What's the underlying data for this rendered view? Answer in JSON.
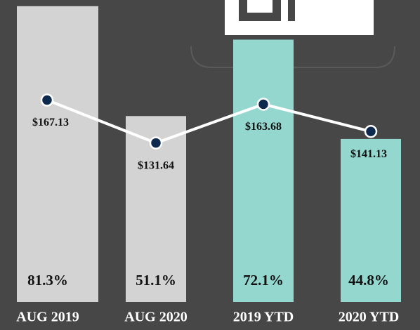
{
  "chart_data": {
    "type": "bar",
    "categories": [
      "AUG 2019",
      "AUG 2020",
      "2019 YTD",
      "2020 YTD"
    ],
    "ylim": [
      0,
      83
    ],
    "y2lim": [
      0,
      250
    ],
    "series": [
      {
        "type": "bar",
        "values": [
          81.3,
          51.1,
          72.1,
          44.8
        ],
        "value_labels": [
          "81.3%",
          "51.1%",
          "72.1%",
          "44.8%"
        ],
        "colors": [
          "#d3d3d3",
          "#d3d3d3",
          "#93d7cf",
          "#93d7cf"
        ]
      },
      {
        "type": "line",
        "axis": "y2",
        "color": "#ffffff",
        "marker_color": "#0d2a4e",
        "values": [
          167.13,
          131.64,
          163.68,
          141.13
        ],
        "value_labels": [
          "$167.13",
          "$131.64",
          "$163.68",
          "$141.13"
        ]
      }
    ]
  }
}
